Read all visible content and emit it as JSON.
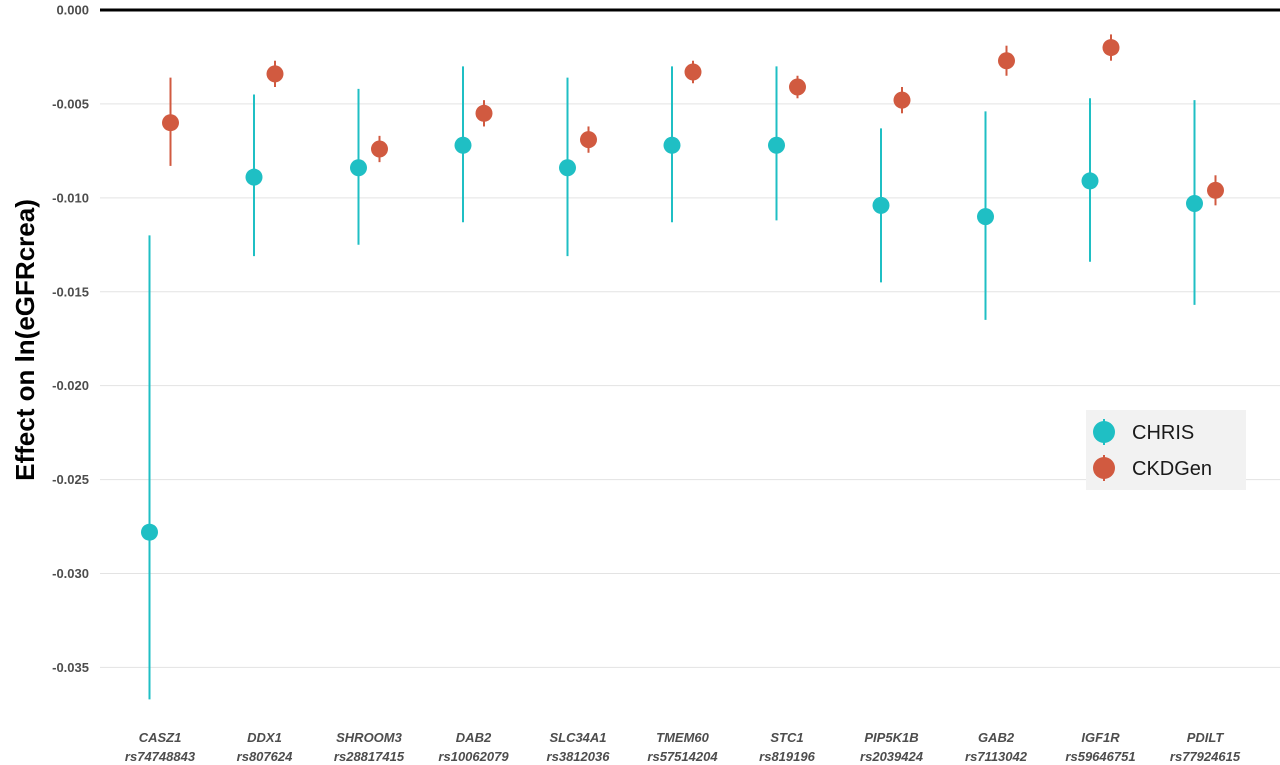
{
  "chart_data": {
    "type": "scatter",
    "subtype": "point-range",
    "title": "",
    "xlabel": "",
    "ylabel": "Effect on ln(eGFRcrea)",
    "ylim": [
      -0.037,
      0.0
    ],
    "yticks": [
      0.0,
      -0.005,
      -0.01,
      -0.015,
      -0.02,
      -0.025,
      -0.03,
      -0.035
    ],
    "ytick_labels": [
      "0.000",
      "-0.005",
      "-0.010",
      "-0.015",
      "-0.020",
      "-0.025",
      "-0.030",
      "-0.035"
    ],
    "reference_line": 0.0,
    "grid": true,
    "legend_position": "right",
    "categories": [
      {
        "gene": "CASZ1",
        "snp": "rs74748843"
      },
      {
        "gene": "DDX1",
        "snp": "rs807624"
      },
      {
        "gene": "SHROOM3",
        "snp": "rs28817415"
      },
      {
        "gene": "DAB2",
        "snp": "rs10062079"
      },
      {
        "gene": "SLC34A1",
        "snp": "rs3812036"
      },
      {
        "gene": "TMEM60",
        "snp": "rs57514204"
      },
      {
        "gene": "STC1",
        "snp": "rs819196"
      },
      {
        "gene": "PIP5K1B",
        "snp": "rs2039424"
      },
      {
        "gene": "GAB2",
        "snp": "rs7113042"
      },
      {
        "gene": "IGF1R",
        "snp": "rs59646751"
      },
      {
        "gene": "PDILT",
        "snp": "rs77924615"
      }
    ],
    "series": [
      {
        "name": "CHRIS",
        "color": "#1FBFC4",
        "values": [
          -0.0278,
          -0.0089,
          -0.0084,
          -0.0072,
          -0.0084,
          -0.0072,
          -0.0072,
          -0.0104,
          -0.011,
          -0.0091,
          -0.0103
        ],
        "lower": [
          -0.0367,
          -0.0131,
          -0.0125,
          -0.0113,
          -0.0131,
          -0.0113,
          -0.0112,
          -0.0145,
          -0.0165,
          -0.0134,
          -0.0157
        ],
        "upper": [
          -0.012,
          -0.0045,
          -0.0042,
          -0.003,
          -0.0036,
          -0.003,
          -0.003,
          -0.0063,
          -0.0054,
          -0.0047,
          -0.0048
        ]
      },
      {
        "name": "CKDGen",
        "color": "#D15A40",
        "values": [
          -0.006,
          -0.0034,
          -0.0074,
          -0.0055,
          -0.0069,
          -0.0033,
          -0.0041,
          -0.0048,
          -0.0027,
          -0.002,
          -0.0096
        ],
        "lower": [
          -0.0083,
          -0.0041,
          -0.0081,
          -0.0062,
          -0.0076,
          -0.0039,
          -0.0047,
          -0.0055,
          -0.0035,
          -0.0027,
          -0.0104
        ],
        "upper": [
          -0.0036,
          -0.0027,
          -0.0067,
          -0.0048,
          -0.0062,
          -0.0027,
          -0.0035,
          -0.0041,
          -0.0019,
          -0.0013,
          -0.0088
        ]
      }
    ]
  }
}
